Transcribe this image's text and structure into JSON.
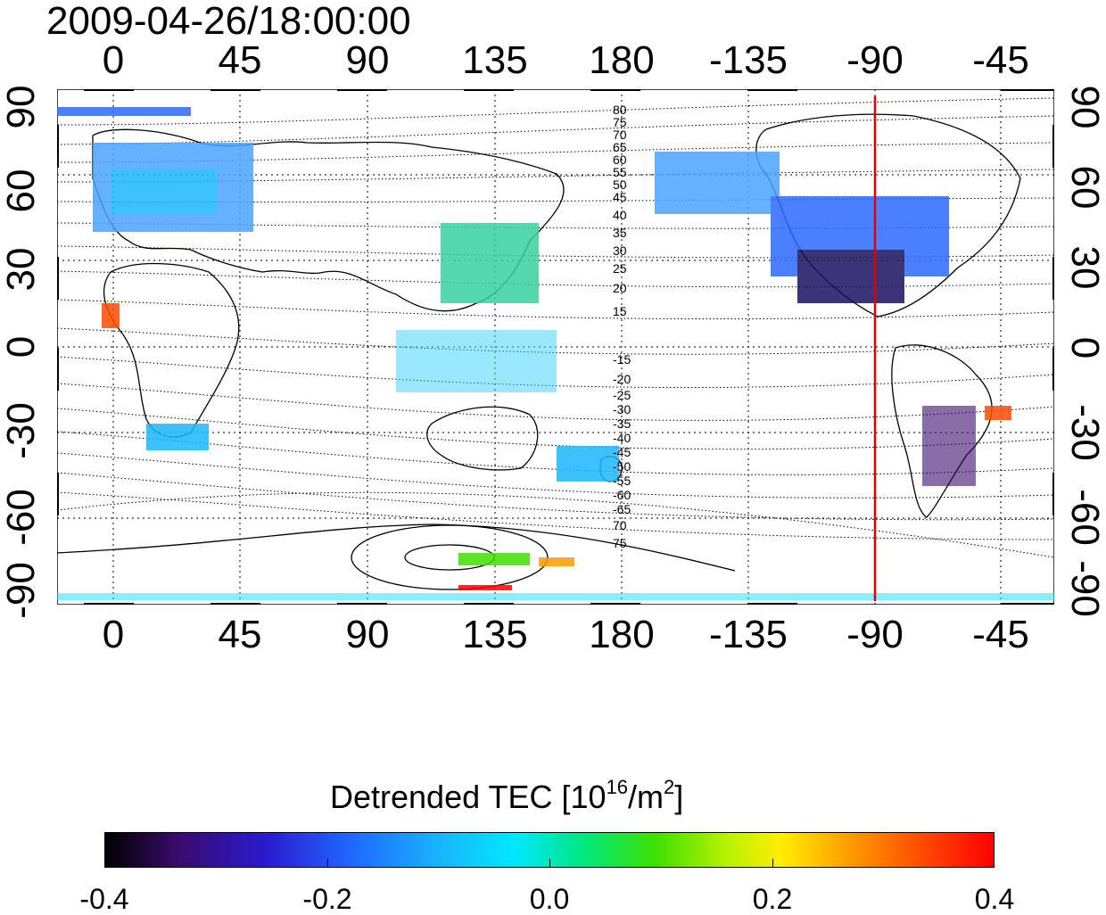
{
  "timestamp": "2009-04-26/18:00:00",
  "map": {
    "top_ticks": [
      "0",
      "45",
      "90",
      "135",
      "180",
      "-135",
      "-90",
      "-45"
    ],
    "bottom_ticks": [
      "0",
      "45",
      "90",
      "135",
      "180",
      "-135",
      "-90",
      "-45"
    ],
    "left_ticks": [
      "90",
      "60",
      "30",
      "0",
      "-30",
      "-60",
      "-90"
    ],
    "right_ticks": [
      "90",
      "60",
      "30",
      "0",
      "-30",
      "-60",
      "-90"
    ],
    "contour_labels_north": [
      "80",
      "75",
      "70",
      "65",
      "60",
      "55",
      "50",
      "45",
      "40",
      "35",
      "30",
      "25",
      "20",
      "15"
    ],
    "contour_labels_south": [
      "-15",
      "-20",
      "-25",
      "-30",
      "-35",
      "-40",
      "-45",
      "-50",
      "-55",
      "-60",
      "-65",
      "70",
      "75"
    ],
    "meridian_marker_longitude": "-90",
    "meridian_marker_color": "#e00000"
  },
  "colorbar": {
    "title_text": "Detrended TEC  [10",
    "title_exponent": "16",
    "title_unit": "/m",
    "title_unit_exponent": "2",
    "title_close": "]",
    "ticks": [
      "-0.4",
      "-0.2",
      "0.0",
      "0.2",
      "0.4"
    ],
    "range": [
      -0.4,
      0.4
    ]
  }
}
